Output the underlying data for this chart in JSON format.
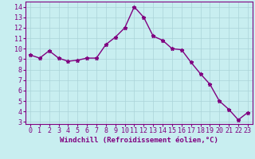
{
  "x": [
    0,
    1,
    2,
    3,
    4,
    5,
    6,
    7,
    8,
    9,
    10,
    11,
    12,
    13,
    14,
    15,
    16,
    17,
    18,
    19,
    20,
    21,
    22,
    23
  ],
  "y": [
    9.4,
    9.1,
    9.8,
    9.1,
    8.8,
    8.9,
    9.1,
    9.1,
    10.4,
    11.1,
    12.0,
    14.0,
    13.0,
    11.2,
    10.8,
    10.0,
    9.9,
    8.7,
    7.6,
    6.6,
    5.0,
    4.2,
    3.2,
    3.9
  ],
  "line_color": "#800080",
  "marker": "*",
  "background_color": "#c8eef0",
  "grid_color": "#aad4d8",
  "xlabel": "Windchill (Refroidissement éolien,°C)",
  "ylabel": "",
  "xlim": [
    -0.5,
    23.5
  ],
  "ylim": [
    2.8,
    14.5
  ],
  "yticks": [
    3,
    4,
    5,
    6,
    7,
    8,
    9,
    10,
    11,
    12,
    13,
    14
  ],
  "xticks": [
    0,
    1,
    2,
    3,
    4,
    5,
    6,
    7,
    8,
    9,
    10,
    11,
    12,
    13,
    14,
    15,
    16,
    17,
    18,
    19,
    20,
    21,
    22,
    23
  ],
  "tick_color": "#800080",
  "label_color": "#800080",
  "font_size_xlabel": 6.5,
  "font_size_ticks": 6.0,
  "line_width": 1.0,
  "marker_size": 3.5
}
